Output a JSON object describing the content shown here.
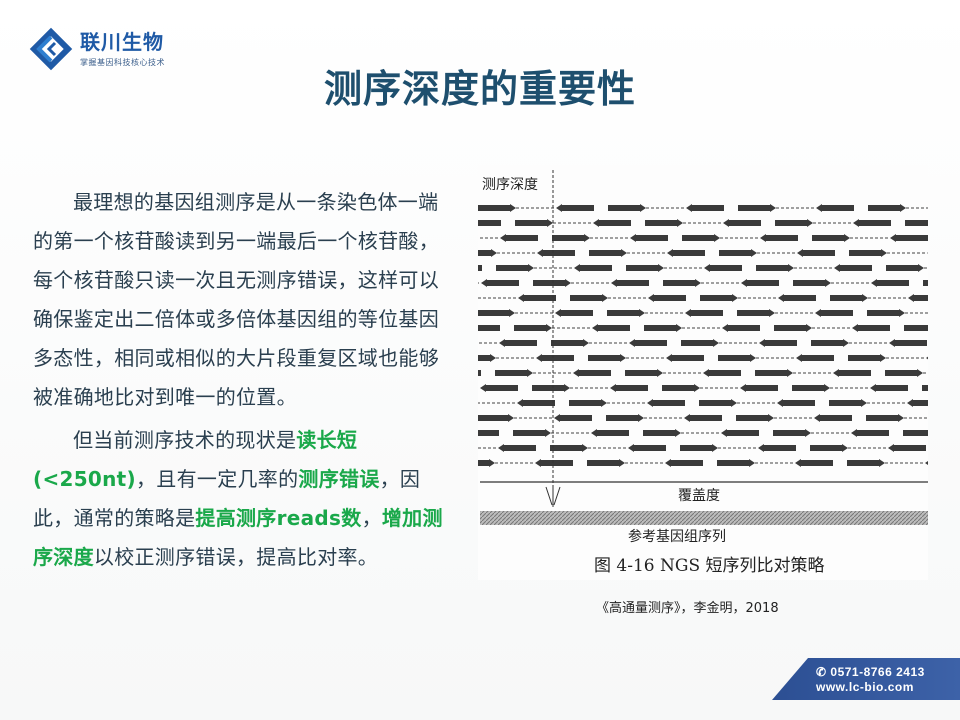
{
  "logo": {
    "name": "联川生物",
    "slogan": "掌握基因科技核心技术"
  },
  "title": "测序深度的重要性",
  "paragraph1": "最理想的基因组测序是从一条染色体一端的第一个核苷酸读到另一端最后一个核苷酸，每个核苷酸只读一次且无测序错误，这样可以确保鉴定出二倍体或多倍体基因组的等位基因多态性，相同或相似的大片段重复区域也能够被准确地比对到唯一的位置。",
  "paragraph2": {
    "s1": "但当前测序技术的现状是",
    "h1": "读长短(<250nt)",
    "s2": "，且有一定几率的",
    "h2": "测序错误",
    "s3": "，因此，通常的策略是",
    "h3": "提高测序reads数",
    "s4": "，",
    "h4": "增加测序深度",
    "s5": "以校正测序错误，提高比对率。"
  },
  "figure": {
    "depth_label": "测序深度",
    "coverage_label": "覆盖度",
    "reference_label": "参考基因组序列",
    "caption": "图 4-16   NGS 短序列比对策略"
  },
  "citation": "《高通量测序》，李金明，2018",
  "contact": {
    "phone_icon": "phone-icon",
    "phone": "0571-8766 2413",
    "website": "www.lc-bio.com"
  },
  "colors": {
    "title": "#1e4f6e",
    "text": "#2a3f4f",
    "highlight": "#1aa84a",
    "brand": "#1f5aa6",
    "banner": "#2c4f93"
  }
}
